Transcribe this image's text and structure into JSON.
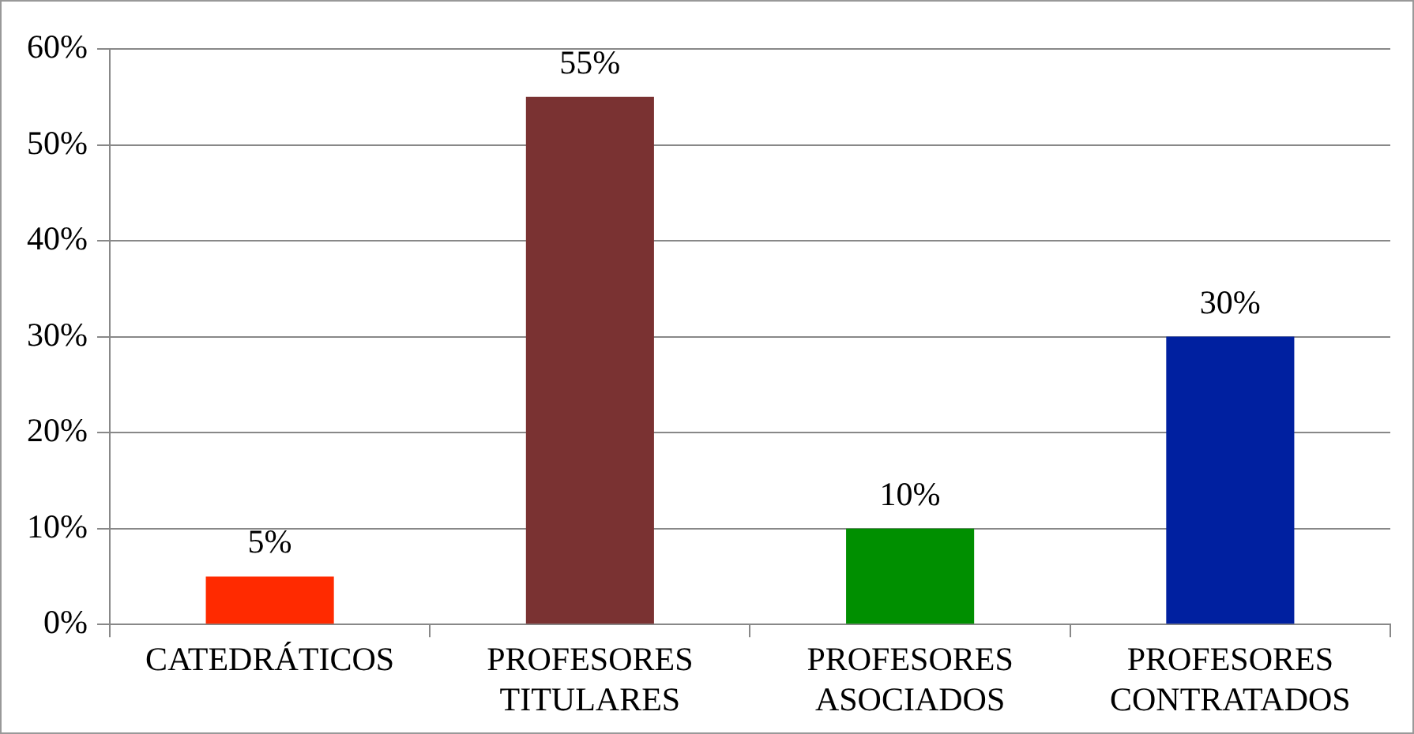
{
  "chart_data": {
    "type": "bar",
    "categories": [
      "CATEDRÁTICOS",
      "PROFESORES TITULARES",
      "PROFESORES ASOCIADOS",
      "PROFESORES CONTRATADOS"
    ],
    "values": [
      5,
      55,
      10,
      30
    ],
    "colors": [
      "#ff2a00",
      "#7a3232",
      "#008f00",
      "#0020a0"
    ],
    "value_labels": [
      "5%",
      "55%",
      "10%",
      "30%"
    ],
    "ylim": [
      0,
      60
    ],
    "yticks": [
      {
        "value": 0,
        "label": "0%"
      },
      {
        "value": 10,
        "label": "10%"
      },
      {
        "value": 20,
        "label": "20%"
      },
      {
        "value": 30,
        "label": "30%"
      },
      {
        "value": 40,
        "label": "40%"
      },
      {
        "value": 50,
        "label": "50%"
      },
      {
        "value": 60,
        "label": "60%"
      }
    ],
    "grid": "y"
  }
}
